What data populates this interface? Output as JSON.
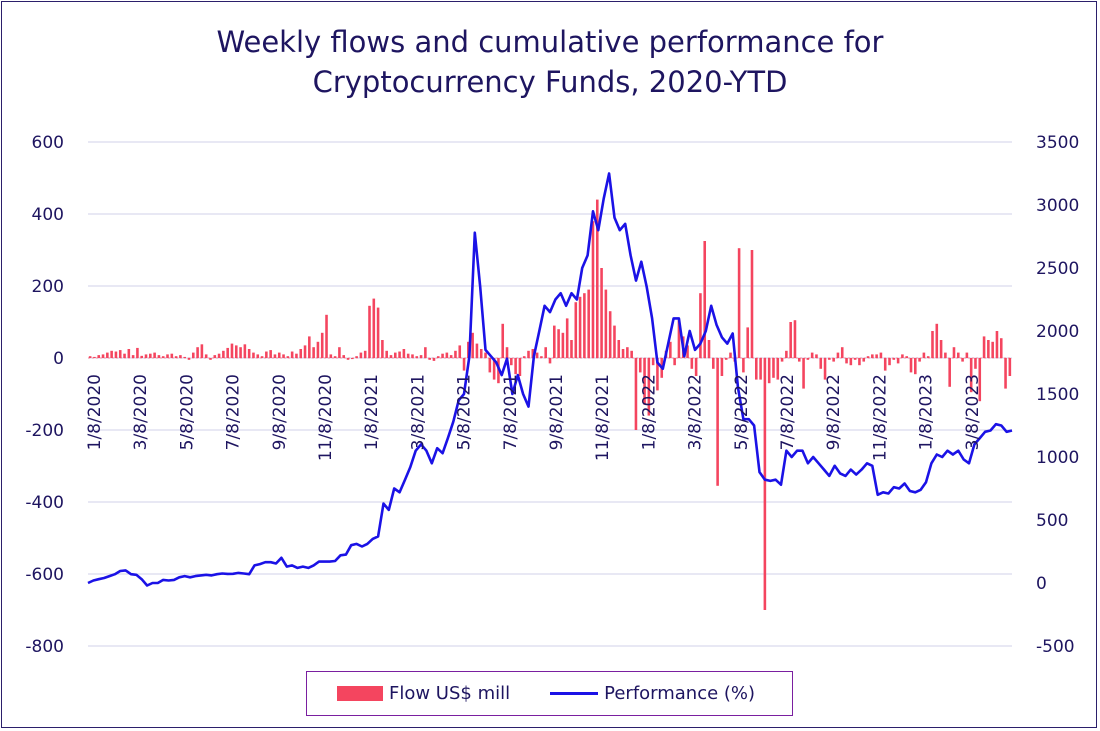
{
  "title_line1": "Weekly flows and cumulative performance for",
  "title_line2": "Cryptocurrency Funds, 2020-YTD",
  "legend": {
    "flow_label": "Flow US$ mill",
    "perf_label": "Performance (%)"
  },
  "colors": {
    "bar": "#f4455f",
    "line": "#1b12e6",
    "grid": "#d2d0ea",
    "text": "#1e1560"
  },
  "chart_data": {
    "type": "bar",
    "x_tick_labels": [
      "1/8/2020",
      "3/8/2020",
      "5/8/2020",
      "7/8/2020",
      "9/8/2020",
      "11/8/2020",
      "1/8/2021",
      "3/8/2021",
      "5/8/2021",
      "7/8/2021",
      "9/8/2021",
      "11/8/2021",
      "1/8/2022",
      "3/8/2022",
      "5/8/2022",
      "7/8/2022",
      "9/8/2022",
      "11/8/2022",
      "1/8/2023",
      "3/8/2023"
    ],
    "y_left": {
      "label": "",
      "range": [
        -800,
        600
      ],
      "ticks": [
        600,
        400,
        200,
        0,
        -200,
        -400,
        -600,
        -800
      ]
    },
    "y_right": {
      "label": "",
      "range": [
        -500,
        3500
      ],
      "ticks": [
        3500,
        3000,
        2500,
        2000,
        1500,
        1000,
        500,
        0,
        -500
      ]
    },
    "grid": true,
    "legend_position": "bottom",
    "series": [
      {
        "name": "Flow US$ mill",
        "type": "bar",
        "axis": "left",
        "values": [
          5,
          3,
          8,
          10,
          15,
          20,
          18,
          22,
          12,
          25,
          8,
          28,
          6,
          10,
          12,
          15,
          8,
          5,
          10,
          12,
          5,
          8,
          3,
          -5,
          15,
          30,
          38,
          10,
          -5,
          8,
          12,
          20,
          28,
          40,
          35,
          30,
          38,
          25,
          15,
          10,
          5,
          18,
          22,
          10,
          15,
          10,
          5,
          18,
          12,
          25,
          35,
          60,
          30,
          45,
          70,
          120,
          10,
          5,
          30,
          8,
          -5,
          -3,
          5,
          15,
          20,
          145,
          165,
          140,
          50,
          20,
          8,
          15,
          18,
          25,
          12,
          10,
          5,
          8,
          30,
          -5,
          -8,
          5,
          12,
          15,
          8,
          20,
          35,
          -35,
          45,
          70,
          40,
          25,
          15,
          -40,
          -60,
          -70,
          95,
          30,
          -20,
          -45,
          -50,
          5,
          20,
          25,
          15,
          5,
          30,
          -15,
          90,
          80,
          70,
          110,
          50,
          155,
          170,
          180,
          190,
          380,
          440,
          250,
          190,
          130,
          90,
          50,
          25,
          30,
          20,
          -200,
          -40,
          -130,
          -160,
          -20,
          -90,
          -55,
          20,
          45,
          -20,
          105,
          60,
          35,
          -30,
          -50,
          180,
          325,
          50,
          -30,
          -355,
          -50,
          -5,
          15,
          -10,
          305,
          -40,
          85,
          300,
          -60,
          -60,
          -700,
          -70,
          -55,
          -60,
          -10,
          20,
          100,
          105,
          -10,
          -85,
          -5,
          15,
          10,
          -30,
          -60,
          -5,
          -10,
          15,
          30,
          -15,
          -20,
          -5,
          -20,
          -10,
          5,
          10,
          10,
          15,
          -35,
          -20,
          -5,
          -15,
          10,
          5,
          -40,
          -45,
          -10,
          15,
          5,
          75,
          95,
          50,
          15,
          -80,
          30,
          15,
          -10,
          15,
          -95,
          -30,
          -120,
          60,
          50,
          45,
          75,
          55,
          -85,
          -50
        ]
      },
      {
        "name": "Performance (%)",
        "type": "line",
        "axis": "right",
        "values": [
          0,
          20,
          30,
          40,
          55,
          70,
          95,
          100,
          70,
          65,
          30,
          -20,
          0,
          0,
          25,
          20,
          25,
          45,
          55,
          45,
          55,
          60,
          65,
          60,
          70,
          75,
          72,
          73,
          80,
          75,
          70,
          140,
          150,
          165,
          165,
          155,
          200,
          130,
          140,
          120,
          130,
          120,
          140,
          170,
          170,
          170,
          175,
          220,
          225,
          300,
          310,
          290,
          310,
          350,
          370,
          630,
          580,
          750,
          720,
          820,
          920,
          1050,
          1100,
          1050,
          950,
          1070,
          1030,
          1150,
          1280,
          1450,
          1500,
          1800,
          2780,
          2350,
          1850,
          1800,
          1750,
          1650,
          1780,
          1500,
          1650,
          1500,
          1400,
          1800,
          2000,
          2200,
          2150,
          2250,
          2300,
          2200,
          2300,
          2250,
          2500,
          2600,
          2950,
          2800,
          3050,
          3250,
          2900,
          2800,
          2850,
          2600,
          2400,
          2550,
          2350,
          2100,
          1750,
          1700,
          1900,
          2100,
          2100,
          1800,
          2000,
          1850,
          1900,
          2000,
          2200,
          2050,
          1950,
          1900,
          1980,
          1550,
          1300,
          1300,
          1250,
          880,
          820,
          810,
          820,
          780,
          1050,
          1000,
          1050,
          1050,
          950,
          1000,
          950,
          900,
          850,
          930,
          870,
          850,
          900,
          860,
          900,
          950,
          930,
          700,
          720,
          710,
          760,
          750,
          790,
          730,
          720,
          740,
          800,
          950,
          1020,
          1000,
          1050,
          1020,
          1050,
          980,
          950,
          1100,
          1150,
          1200,
          1210,
          1260,
          1250,
          1200,
          1210
        ]
      }
    ]
  }
}
